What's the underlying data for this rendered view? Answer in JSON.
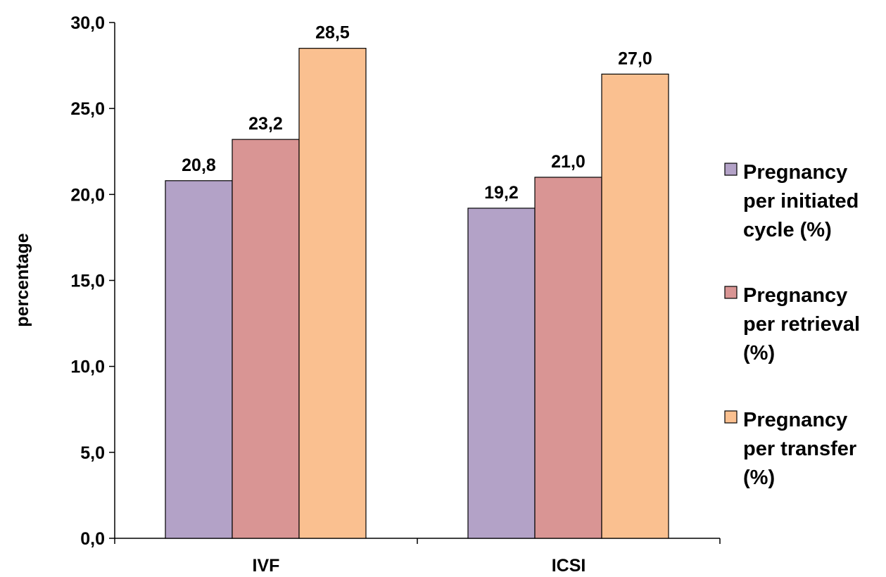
{
  "chart_data": {
    "type": "bar",
    "title": "",
    "xlabel": "",
    "ylabel": "percentage",
    "ylim": [
      0,
      30
    ],
    "ytick_step": 5,
    "ytick_labels": [
      "0,0",
      "5,0",
      "10,0",
      "15,0",
      "20,0",
      "25,0",
      "30,0"
    ],
    "categories": [
      "IVF",
      "ICSI"
    ],
    "series": [
      {
        "name": "Pregnancy per initiated cycle (%)",
        "legend_lines": [
          "Pregnancy",
          "per initiated",
          "cycle (%)"
        ],
        "color": "#b3a2c7",
        "values": [
          20.8,
          19.2
        ],
        "value_labels": [
          "20,8",
          "19,2"
        ]
      },
      {
        "name": "Pregnancy per retrieval (%)",
        "legend_lines": [
          "Pregnancy",
          "per retrieval",
          "(%)"
        ],
        "color": "#d99594",
        "values": [
          23.2,
          21.0
        ],
        "value_labels": [
          "23,2",
          "21,0"
        ]
      },
      {
        "name": "Pregnancy per transfer (%)",
        "legend_lines": [
          "Pregnancy",
          "per transfer",
          "(%)"
        ],
        "color": "#fac090",
        "values": [
          28.5,
          27.0
        ],
        "value_labels": [
          "28,5",
          "27,0"
        ]
      }
    ],
    "grid": false,
    "legend_position": "right"
  }
}
